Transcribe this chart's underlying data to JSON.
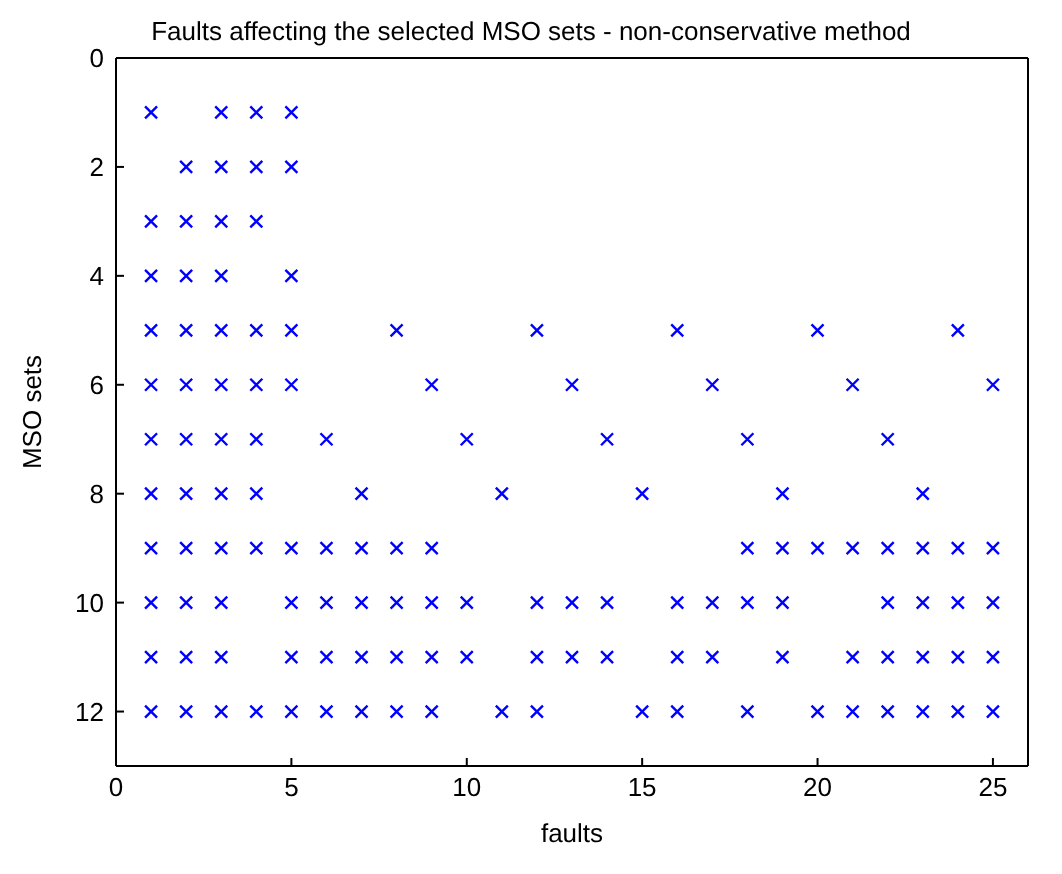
{
  "chart_data": {
    "type": "scatter",
    "title": "Faults affecting the selected MSO sets - non-conservative method",
    "xlabel": "faults",
    "ylabel": "MSO sets",
    "xlim": [
      0,
      26
    ],
    "ylim": [
      13,
      0
    ],
    "xticks": [
      0,
      5,
      10,
      15,
      20,
      25
    ],
    "yticks": [
      0,
      2,
      4,
      6,
      8,
      10,
      12
    ],
    "marker": "cross",
    "series": [
      {
        "color": "#0000ff",
        "x": [
          1,
          3,
          4,
          5,
          2,
          3,
          4,
          5,
          1,
          2,
          3,
          4,
          1,
          2,
          3,
          5,
          1,
          2,
          3,
          4,
          5,
          8,
          12,
          16,
          20,
          24,
          1,
          2,
          3,
          4,
          5,
          9,
          13,
          17,
          21,
          25,
          1,
          2,
          3,
          4,
          6,
          10,
          14,
          18,
          22,
          1,
          2,
          3,
          4,
          7,
          11,
          15,
          19,
          23,
          1,
          2,
          3,
          4,
          5,
          6,
          7,
          8,
          9,
          18,
          19,
          20,
          21,
          22,
          23,
          24,
          25,
          1,
          2,
          3,
          5,
          6,
          7,
          8,
          9,
          10,
          12,
          13,
          14,
          16,
          17,
          18,
          19,
          22,
          23,
          24,
          25,
          1,
          2,
          3,
          5,
          6,
          7,
          8,
          9,
          10,
          12,
          13,
          14,
          16,
          17,
          19,
          21,
          22,
          23,
          24,
          25,
          1,
          2,
          3,
          4,
          5,
          6,
          7,
          8,
          9,
          11,
          12,
          15,
          16,
          18,
          20,
          21,
          22,
          23,
          24,
          25
        ],
        "values": [
          1,
          1,
          1,
          1,
          2,
          2,
          2,
          2,
          3,
          3,
          3,
          3,
          4,
          4,
          4,
          4,
          5,
          5,
          5,
          5,
          5,
          5,
          5,
          5,
          5,
          5,
          6,
          6,
          6,
          6,
          6,
          6,
          6,
          6,
          6,
          6,
          7,
          7,
          7,
          7,
          7,
          7,
          7,
          7,
          7,
          8,
          8,
          8,
          8,
          8,
          8,
          8,
          8,
          8,
          9,
          9,
          9,
          9,
          9,
          9,
          9,
          9,
          9,
          9,
          9,
          9,
          9,
          9,
          9,
          9,
          9,
          10,
          10,
          10,
          10,
          10,
          10,
          10,
          10,
          10,
          10,
          10,
          10,
          10,
          10,
          10,
          10,
          10,
          10,
          10,
          10,
          11,
          11,
          11,
          11,
          11,
          11,
          11,
          11,
          11,
          11,
          11,
          11,
          11,
          11,
          11,
          11,
          11,
          11,
          11,
          11,
          12,
          12,
          12,
          12,
          12,
          12,
          12,
          12,
          12,
          12,
          12,
          12,
          12,
          12,
          12,
          12,
          12,
          12,
          12,
          12
        ]
      }
    ]
  }
}
